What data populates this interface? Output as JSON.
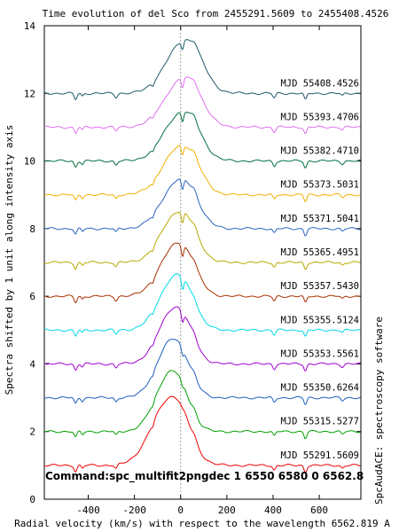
{
  "chart_data": {
    "type": "line",
    "title": "Time evolution of del Sco from 2455291.5609 to 2455408.4526",
    "xlabel": "Radial velocity (km/s) with respect to the wavelength 6562.819 A",
    "ylabel": "Spectra shifted by 1 unit along intensity axis",
    "side_label": "SpcAudACE: spectroscopy software",
    "command": "Command:spc_multifit2pngdec 1 6550 6580 0 6562.8",
    "xlim": [
      -590,
      780
    ],
    "ylim": [
      0,
      14
    ],
    "x_ticks": [
      -400,
      -200,
      0,
      200,
      400,
      600
    ],
    "x_tick_labels": [
      "-400",
      "-200",
      "0",
      "200",
      "400",
      "600"
    ],
    "y_ticks": [
      0,
      2,
      4,
      6,
      8,
      10,
      12,
      14
    ],
    "y_tick_labels": [
      "0",
      "2",
      "4",
      "6",
      "8",
      "10",
      "12",
      "14"
    ],
    "reference_line_x": 0,
    "grid": false,
    "legend": "labels at right end of each series",
    "series": [
      {
        "name": "MJD 55291.5609",
        "offset": 0,
        "color": "#ee0000",
        "peak": 1.8,
        "width": 75,
        "center": -55,
        "notch": 0.05
      },
      {
        "name": "MJD 55315.5277",
        "offset": 1,
        "color": "#00a000",
        "peak": 1.6,
        "width": 62,
        "center": -50,
        "notch": 0.15
      },
      {
        "name": "MJD 55350.6264",
        "offset": 2,
        "color": "#1e5fbf",
        "peak": 1.55,
        "width": 62,
        "center": -45,
        "notch": 0.2
      },
      {
        "name": "MJD 55353.5561",
        "offset": 3,
        "color": "#a000d0",
        "peak": 1.5,
        "width": 64,
        "center": -35,
        "notch": 0.3
      },
      {
        "name": "MJD 55355.5124",
        "offset": 4,
        "color": "#00d8e8",
        "peak": 1.45,
        "width": 66,
        "center": -30,
        "notch": 0.35
      },
      {
        "name": "MJD 55357.5430",
        "offset": 5,
        "color": "#a83000",
        "peak": 1.4,
        "width": 68,
        "center": -25,
        "notch": 0.35
      },
      {
        "name": "MJD 55365.4951",
        "offset": 6,
        "color": "#b8a800",
        "peak": 1.35,
        "width": 68,
        "center": -20,
        "notch": 0.35
      },
      {
        "name": "MJD 55371.5041",
        "offset": 7,
        "color": "#2a64c0",
        "peak": 1.3,
        "width": 70,
        "center": -15,
        "notch": 0.35
      },
      {
        "name": "MJD 55373.5031",
        "offset": 8,
        "color": "#f0b000",
        "peak": 1.3,
        "width": 72,
        "center": -10,
        "notch": 0.3
      },
      {
        "name": "MJD 55382.4710",
        "offset": 9,
        "color": "#007040",
        "peak": 1.3,
        "width": 72,
        "center": -5,
        "notch": 0.3
      },
      {
        "name": "MJD 55393.4706",
        "offset": 10,
        "color": "#e070f0",
        "peak": 1.3,
        "width": 74,
        "center": 0,
        "notch": 0.3
      },
      {
        "name": "MJD 55408.4526",
        "offset": 11,
        "color": "#205a6a",
        "peak": 1.4,
        "width": 74,
        "center": 5,
        "notch": 0.25
      }
    ]
  }
}
